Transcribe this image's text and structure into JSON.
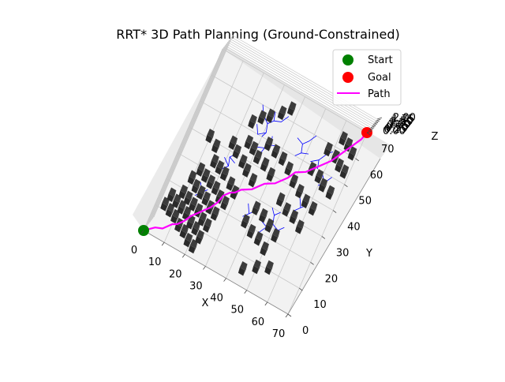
{
  "chart_data": {
    "type": "scatter",
    "title": "RRT* 3D Path Planning (Ground-Constrained)",
    "xlabel": "X",
    "ylabel": "Y",
    "zlabel": "Z",
    "xlim": [
      0,
      70
    ],
    "ylim": [
      0,
      70
    ],
    "zlim": [
      0,
      2
    ],
    "x_ticks": [
      "0",
      "10",
      "20",
      "30",
      "40",
      "50",
      "60",
      "70"
    ],
    "y_ticks": [
      "0",
      "10",
      "20",
      "30",
      "40",
      "50",
      "60",
      "70"
    ],
    "z_ticks": [
      "0.00",
      "0.25",
      "0.50",
      "0.75",
      "1.00",
      "1.25",
      "1.50",
      "1.75",
      "2.00"
    ],
    "legend": {
      "location": "top-right",
      "entries": [
        {
          "label": "Start",
          "marker": "circle",
          "color": "#008000"
        },
        {
          "label": "Goal",
          "marker": "circle",
          "color": "#ff0000"
        },
        {
          "label": "Path",
          "marker": "line",
          "color": "#ff00ff"
        }
      ]
    },
    "colors": {
      "start": "#008000",
      "goal": "#ff0000",
      "path": "#ff00ff",
      "tree": "#0000ff",
      "obstacle": "#3c3c3c"
    },
    "start": [
      0,
      0,
      0
    ],
    "goal": [
      70,
      70,
      0
    ],
    "path": [
      [
        0,
        0
      ],
      [
        4,
        3
      ],
      [
        7,
        4
      ],
      [
        10,
        7
      ],
      [
        12,
        8
      ],
      [
        14,
        10
      ],
      [
        16,
        13
      ],
      [
        18,
        15
      ],
      [
        20,
        17
      ],
      [
        22,
        19
      ],
      [
        24,
        22
      ],
      [
        25,
        25
      ],
      [
        27,
        27
      ],
      [
        29,
        28
      ],
      [
        31,
        30
      ],
      [
        33,
        31
      ],
      [
        35,
        32
      ],
      [
        37,
        34
      ],
      [
        39,
        36
      ],
      [
        41,
        37
      ],
      [
        43,
        38
      ],
      [
        45,
        40
      ],
      [
        47,
        42
      ],
      [
        49,
        45
      ],
      [
        51,
        46
      ],
      [
        53,
        47
      ],
      [
        55,
        49
      ],
      [
        57,
        51
      ],
      [
        59,
        53
      ],
      [
        61,
        55
      ],
      [
        63,
        58
      ],
      [
        65,
        61
      ],
      [
        67,
        64
      ],
      [
        69,
        67
      ],
      [
        70,
        70
      ]
    ],
    "tree_branches": [
      [
        [
          30,
          50
        ],
        [
          31,
          52
        ],
        [
          30,
          55
        ],
        [
          32,
          57
        ],
        [
          31,
          60
        ]
      ],
      [
        [
          31,
          52
        ],
        [
          28,
          50
        ],
        [
          26,
          53
        ]
      ],
      [
        [
          32,
          57
        ],
        [
          35,
          58
        ],
        [
          37,
          61
        ]
      ],
      [
        [
          30,
          55
        ],
        [
          27,
          57
        ],
        [
          25,
          60
        ]
      ],
      [
        [
          32,
          44
        ],
        [
          33,
          47
        ],
        [
          35,
          49
        ],
        [
          34,
          52
        ]
      ],
      [
        [
          33,
          47
        ],
        [
          30,
          46
        ]
      ],
      [
        [
          35,
          49
        ],
        [
          38,
          50
        ]
      ],
      [
        [
          20,
          33
        ],
        [
          22,
          35
        ],
        [
          21,
          38
        ],
        [
          23,
          40
        ]
      ],
      [
        [
          22,
          35
        ],
        [
          19,
          37
        ]
      ],
      [
        [
          21,
          38
        ],
        [
          24,
          37
        ]
      ],
      [
        [
          46,
          50
        ],
        [
          48,
          52
        ],
        [
          47,
          55
        ],
        [
          49,
          57
        ],
        [
          51,
          60
        ]
      ],
      [
        [
          48,
          52
        ],
        [
          51,
          53
        ]
      ],
      [
        [
          47,
          55
        ],
        [
          44,
          56
        ]
      ],
      [
        [
          53,
          51
        ],
        [
          56,
          53
        ],
        [
          58,
          56
        ],
        [
          60,
          58
        ]
      ],
      [
        [
          56,
          53
        ],
        [
          57,
          50
        ]
      ],
      [
        [
          45,
          20
        ],
        [
          47,
          23
        ],
        [
          49,
          25
        ],
        [
          48,
          28
        ],
        [
          50,
          30
        ]
      ],
      [
        [
          47,
          23
        ],
        [
          44,
          24
        ]
      ],
      [
        [
          49,
          25
        ],
        [
          52,
          24
        ],
        [
          54,
          26
        ]
      ],
      [
        [
          48,
          28
        ],
        [
          46,
          30
        ]
      ],
      [
        [
          36,
          22
        ],
        [
          38,
          24
        ],
        [
          40,
          26
        ]
      ],
      [
        [
          38,
          24
        ],
        [
          36,
          27
        ]
      ],
      [
        [
          55,
          33
        ],
        [
          57,
          35
        ],
        [
          59,
          37
        ]
      ],
      [
        [
          57,
          35
        ],
        [
          55,
          38
        ]
      ],
      [
        [
          60,
          45
        ],
        [
          62,
          47
        ],
        [
          64,
          50
        ]
      ],
      [
        [
          62,
          47
        ],
        [
          60,
          49
        ]
      ],
      [
        [
          14,
          20
        ],
        [
          16,
          22
        ],
        [
          18,
          24
        ]
      ],
      [
        [
          16,
          22
        ],
        [
          14,
          25
        ]
      ]
    ],
    "obstacles": [
      [
        4,
        11
      ],
      [
        7,
        10
      ],
      [
        10,
        9
      ],
      [
        13,
        7
      ],
      [
        16,
        6
      ],
      [
        19,
        4
      ],
      [
        22,
        3
      ],
      [
        5,
        15
      ],
      [
        8,
        14
      ],
      [
        11,
        13
      ],
      [
        14,
        12
      ],
      [
        17,
        10
      ],
      [
        20,
        9
      ],
      [
        23,
        7
      ],
      [
        9,
        18
      ],
      [
        12,
        17
      ],
      [
        15,
        16
      ],
      [
        18,
        15
      ],
      [
        21,
        13
      ],
      [
        24,
        12
      ],
      [
        10,
        24
      ],
      [
        13,
        22
      ],
      [
        16,
        21
      ],
      [
        19,
        20
      ],
      [
        22,
        18
      ],
      [
        25,
        17
      ],
      [
        12,
        28
      ],
      [
        15,
        27
      ],
      [
        18,
        26
      ],
      [
        21,
        25
      ],
      [
        24,
        23
      ],
      [
        27,
        22
      ],
      [
        16,
        33
      ],
      [
        19,
        32
      ],
      [
        22,
        31
      ],
      [
        26,
        29
      ],
      [
        29,
        27
      ],
      [
        10,
        40
      ],
      [
        14,
        38
      ],
      [
        20,
        42
      ],
      [
        23,
        40
      ],
      [
        27,
        38
      ],
      [
        30,
        36
      ],
      [
        34,
        34
      ],
      [
        26,
        45
      ],
      [
        29,
        44
      ],
      [
        32,
        42
      ],
      [
        36,
        41
      ],
      [
        40,
        39
      ],
      [
        24,
        52
      ],
      [
        27,
        55
      ],
      [
        30,
        57
      ],
      [
        34,
        60
      ],
      [
        37,
        63
      ],
      [
        34,
        48
      ],
      [
        38,
        47
      ],
      [
        42,
        46
      ],
      [
        46,
        44
      ],
      [
        38,
        20
      ],
      [
        42,
        18
      ],
      [
        46,
        17
      ],
      [
        50,
        15
      ],
      [
        40,
        26
      ],
      [
        44,
        25
      ],
      [
        48,
        23
      ],
      [
        52,
        21
      ],
      [
        48,
        33
      ],
      [
        52,
        31
      ],
      [
        56,
        30
      ],
      [
        60,
        28
      ],
      [
        50,
        41
      ],
      [
        54,
        39
      ],
      [
        58,
        37
      ],
      [
        62,
        36
      ],
      [
        55,
        48
      ],
      [
        59,
        47
      ],
      [
        62,
        45
      ],
      [
        66,
        44
      ],
      [
        58,
        57
      ],
      [
        62,
        56
      ],
      [
        65,
        54
      ],
      [
        68,
        53
      ],
      [
        62,
        63
      ],
      [
        65,
        62
      ],
      [
        68,
        60
      ],
      [
        45,
        5
      ],
      [
        50,
        8
      ],
      [
        55,
        10
      ]
    ]
  }
}
